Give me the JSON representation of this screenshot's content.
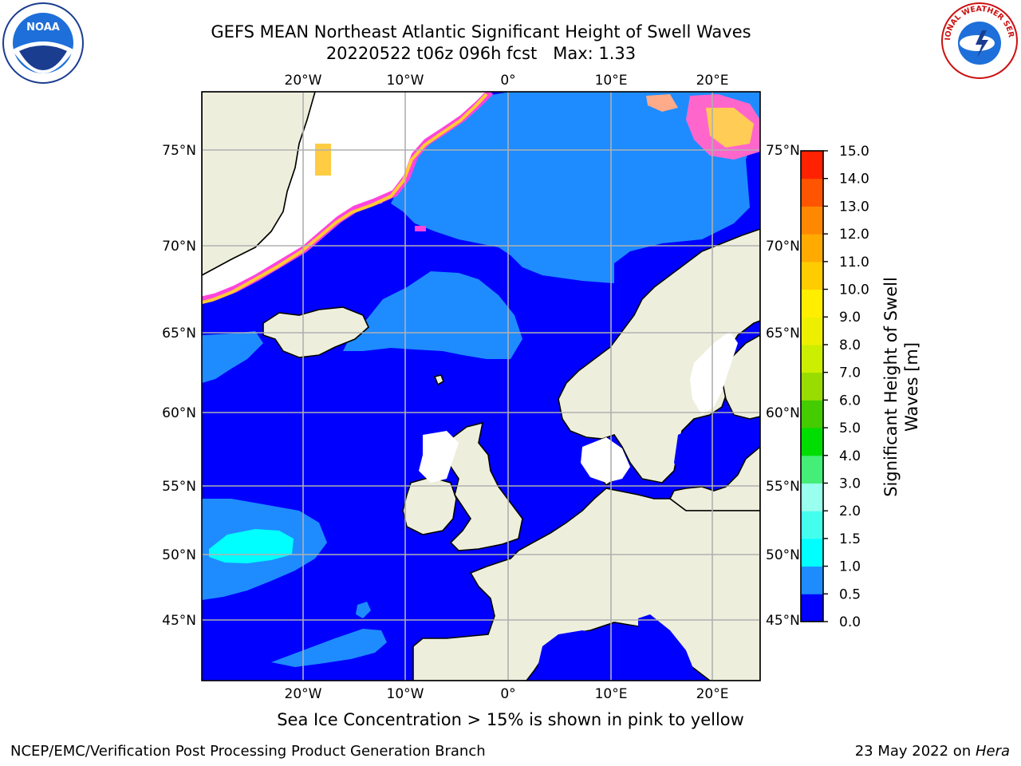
{
  "title": {
    "line1": "GEFS MEAN Northeast Atlantic Significant Height of Swell Waves",
    "line2": "20220522 t06z 096h fcst   Max: 1.33"
  },
  "logos": {
    "left": "NOAA",
    "right": "NATIONAL WEATHER SERVICE"
  },
  "map": {
    "lon_labels": [
      "20°W",
      "10°W",
      "0°",
      "10°E",
      "20°E"
    ],
    "lat_labels": [
      "75°N",
      "70°N",
      "65°N",
      "60°N",
      "55°N",
      "50°N",
      "45°N"
    ],
    "colors": {
      "ocean_low": "#0000ff",
      "ocean_mid": "#1e8cff",
      "ocean_high": "#00ffff",
      "land": "#eeeedd",
      "grid": "#b0b0b0",
      "ice": "#ff44dd"
    }
  },
  "colorbar": {
    "title_line1": "Significant Height of Swell",
    "title_line2": "Waves [m]",
    "levels": [
      "0.0",
      "0.5",
      "1.0",
      "1.5",
      "2.0",
      "3.0",
      "4.0",
      "5.0",
      "6.0",
      "7.0",
      "8.0",
      "9.0",
      "10.0",
      "11.0",
      "12.0",
      "13.0",
      "14.0",
      "15.0"
    ],
    "colors": [
      "#0000ff",
      "#1e8cff",
      "#00ffff",
      "#44ffee",
      "#99ffee",
      "#44ee77",
      "#00dd00",
      "#44cc00",
      "#99dd00",
      "#ccee00",
      "#eeee00",
      "#ffee00",
      "#ffcc00",
      "#ffaa00",
      "#ff8800",
      "#ff5500",
      "#ff2200"
    ]
  },
  "footnote": "Sea Ice Concentration > 15% is shown in pink to yellow",
  "footer": {
    "left": "NCEP/EMC/Verification Post Processing Product Generation Branch",
    "right_date": "23 May 2022 on ",
    "right_host": "Hera"
  }
}
